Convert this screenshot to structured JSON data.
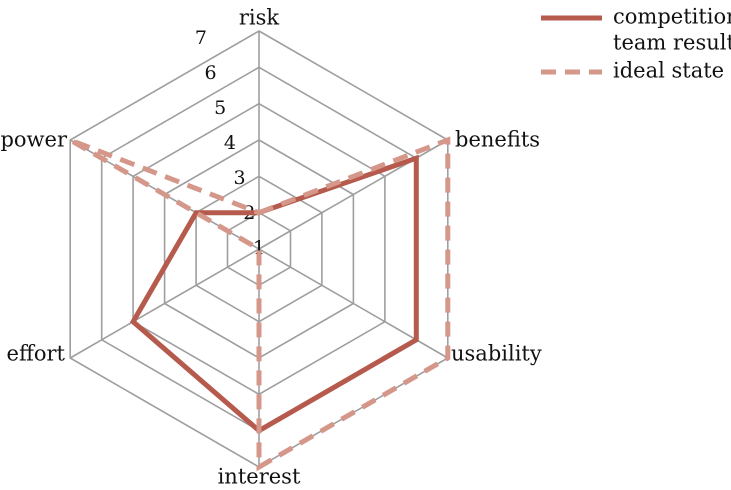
{
  "chart_data": {
    "type": "radar",
    "axes": [
      "risk",
      "benefits",
      "usability",
      "interest",
      "effort",
      "power"
    ],
    "rlim": [
      1,
      7
    ],
    "radial_ticks": [
      "1",
      "2",
      "3",
      "4",
      "5",
      "6",
      "7"
    ],
    "grid": true,
    "legend_position": "top-right",
    "series": [
      {
        "name_lines": [
          "competition",
          "team results"
        ],
        "values": [
          2,
          6,
          6,
          6,
          5,
          3
        ],
        "color": "#b55a4c",
        "style": "solid"
      },
      {
        "name_lines": [
          "ideal state"
        ],
        "values": [
          2,
          7,
          7,
          7,
          1,
          7
        ],
        "color": "#d4978a",
        "style": "dashed"
      }
    ]
  }
}
